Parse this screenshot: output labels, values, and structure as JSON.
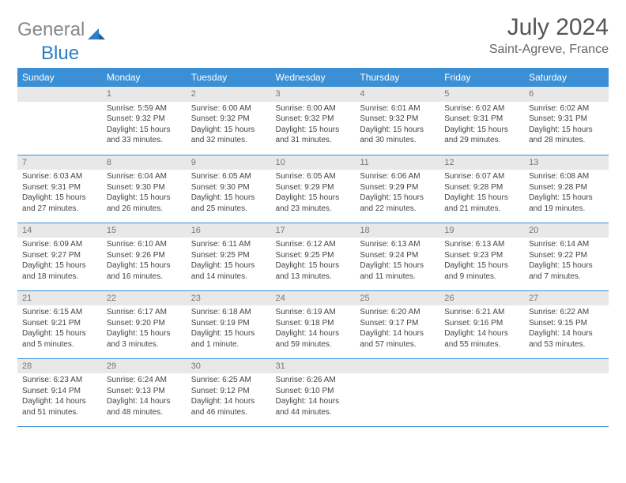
{
  "brand": {
    "part1": "General",
    "part2": "Blue"
  },
  "title": "July 2024",
  "location": "Saint-Agreve, France",
  "colors": {
    "header_bg": "#3b8fd4",
    "header_text": "#ffffff",
    "daynum_bg": "#e8e8e8",
    "daynum_text": "#777777",
    "cell_border": "#3b8fd4",
    "body_text": "#444444",
    "logo_gray": "#888888",
    "logo_blue": "#2b7ec4"
  },
  "dayNames": [
    "Sunday",
    "Monday",
    "Tuesday",
    "Wednesday",
    "Thursday",
    "Friday",
    "Saturday"
  ],
  "startOffset": 1,
  "daysInMonth": 31,
  "weeksShown": 5,
  "days": {
    "1": {
      "sunrise": "5:59 AM",
      "sunset": "9:32 PM",
      "daylight": "15 hours and 33 minutes."
    },
    "2": {
      "sunrise": "6:00 AM",
      "sunset": "9:32 PM",
      "daylight": "15 hours and 32 minutes."
    },
    "3": {
      "sunrise": "6:00 AM",
      "sunset": "9:32 PM",
      "daylight": "15 hours and 31 minutes."
    },
    "4": {
      "sunrise": "6:01 AM",
      "sunset": "9:32 PM",
      "daylight": "15 hours and 30 minutes."
    },
    "5": {
      "sunrise": "6:02 AM",
      "sunset": "9:31 PM",
      "daylight": "15 hours and 29 minutes."
    },
    "6": {
      "sunrise": "6:02 AM",
      "sunset": "9:31 PM",
      "daylight": "15 hours and 28 minutes."
    },
    "7": {
      "sunrise": "6:03 AM",
      "sunset": "9:31 PM",
      "daylight": "15 hours and 27 minutes."
    },
    "8": {
      "sunrise": "6:04 AM",
      "sunset": "9:30 PM",
      "daylight": "15 hours and 26 minutes."
    },
    "9": {
      "sunrise": "6:05 AM",
      "sunset": "9:30 PM",
      "daylight": "15 hours and 25 minutes."
    },
    "10": {
      "sunrise": "6:05 AM",
      "sunset": "9:29 PM",
      "daylight": "15 hours and 23 minutes."
    },
    "11": {
      "sunrise": "6:06 AM",
      "sunset": "9:29 PM",
      "daylight": "15 hours and 22 minutes."
    },
    "12": {
      "sunrise": "6:07 AM",
      "sunset": "9:28 PM",
      "daylight": "15 hours and 21 minutes."
    },
    "13": {
      "sunrise": "6:08 AM",
      "sunset": "9:28 PM",
      "daylight": "15 hours and 19 minutes."
    },
    "14": {
      "sunrise": "6:09 AM",
      "sunset": "9:27 PM",
      "daylight": "15 hours and 18 minutes."
    },
    "15": {
      "sunrise": "6:10 AM",
      "sunset": "9:26 PM",
      "daylight": "15 hours and 16 minutes."
    },
    "16": {
      "sunrise": "6:11 AM",
      "sunset": "9:25 PM",
      "daylight": "15 hours and 14 minutes."
    },
    "17": {
      "sunrise": "6:12 AM",
      "sunset": "9:25 PM",
      "daylight": "15 hours and 13 minutes."
    },
    "18": {
      "sunrise": "6:13 AM",
      "sunset": "9:24 PM",
      "daylight": "15 hours and 11 minutes."
    },
    "19": {
      "sunrise": "6:13 AM",
      "sunset": "9:23 PM",
      "daylight": "15 hours and 9 minutes."
    },
    "20": {
      "sunrise": "6:14 AM",
      "sunset": "9:22 PM",
      "daylight": "15 hours and 7 minutes."
    },
    "21": {
      "sunrise": "6:15 AM",
      "sunset": "9:21 PM",
      "daylight": "15 hours and 5 minutes."
    },
    "22": {
      "sunrise": "6:17 AM",
      "sunset": "9:20 PM",
      "daylight": "15 hours and 3 minutes."
    },
    "23": {
      "sunrise": "6:18 AM",
      "sunset": "9:19 PM",
      "daylight": "15 hours and 1 minute."
    },
    "24": {
      "sunrise": "6:19 AM",
      "sunset": "9:18 PM",
      "daylight": "14 hours and 59 minutes."
    },
    "25": {
      "sunrise": "6:20 AM",
      "sunset": "9:17 PM",
      "daylight": "14 hours and 57 minutes."
    },
    "26": {
      "sunrise": "6:21 AM",
      "sunset": "9:16 PM",
      "daylight": "14 hours and 55 minutes."
    },
    "27": {
      "sunrise": "6:22 AM",
      "sunset": "9:15 PM",
      "daylight": "14 hours and 53 minutes."
    },
    "28": {
      "sunrise": "6:23 AM",
      "sunset": "9:14 PM",
      "daylight": "14 hours and 51 minutes."
    },
    "29": {
      "sunrise": "6:24 AM",
      "sunset": "9:13 PM",
      "daylight": "14 hours and 48 minutes."
    },
    "30": {
      "sunrise": "6:25 AM",
      "sunset": "9:12 PM",
      "daylight": "14 hours and 46 minutes."
    },
    "31": {
      "sunrise": "6:26 AM",
      "sunset": "9:10 PM",
      "daylight": "14 hours and 44 minutes."
    }
  },
  "labels": {
    "sunrise": "Sunrise:",
    "sunset": "Sunset:",
    "daylight": "Daylight:"
  }
}
